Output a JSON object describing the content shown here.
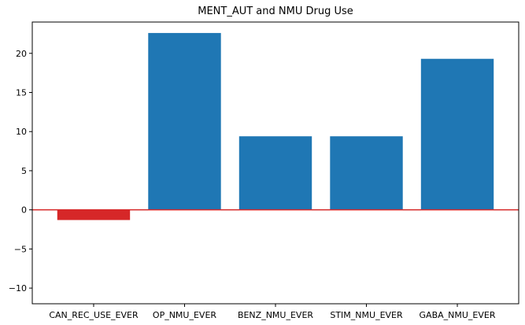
{
  "chart_data": {
    "type": "bar",
    "title": "MENT_AUT and NMU Drug Use",
    "xlabel": "",
    "ylabel": "",
    "categories": [
      "CAN_REC_USE_EVER",
      "OP_NMU_EVER",
      "BENZ_NMU_EVER",
      "STIM_NMU_EVER",
      "GABA_NMU_EVER"
    ],
    "values": [
      -1.3,
      22.6,
      9.4,
      9.4,
      19.3
    ],
    "bar_colors": [
      "#d62728",
      "#1f77b4",
      "#1f77b4",
      "#1f77b4",
      "#1f77b4"
    ],
    "ylim": [
      -12,
      24
    ],
    "yticks": [
      -10,
      -5,
      0,
      5,
      10,
      15,
      20
    ],
    "ytick_labels": [
      "−10",
      "−5",
      "0",
      "5",
      "10",
      "15",
      "20"
    ],
    "reference_line": {
      "value": 0,
      "color": "#d62728"
    },
    "grid": false,
    "legend": "none"
  }
}
